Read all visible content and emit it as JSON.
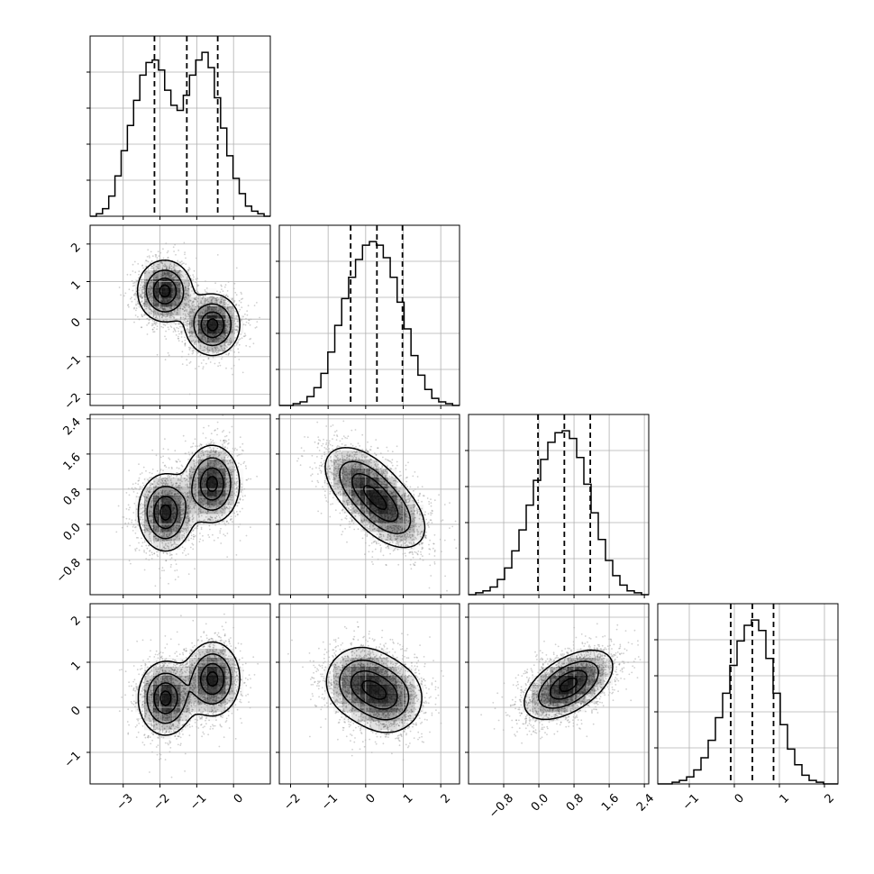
{
  "chart_data": {
    "type": "corner",
    "title": "",
    "parameter_labels": [],
    "grid": true,
    "colors": {
      "axes": "#000000",
      "grid": "#b0b0b0",
      "points": "#777777",
      "contour_fill": "#000000"
    },
    "ranges": [
      [
        -3.9,
        1.0
      ],
      [
        -2.3,
        2.5
      ],
      [
        -1.6,
        2.5
      ],
      [
        -1.7,
        2.3
      ]
    ],
    "tick_labels": [
      {
        "values": [
          -3,
          -2,
          -1,
          0
        ],
        "labels": [
          "−3",
          "−2",
          "−1",
          "0"
        ]
      },
      {
        "values": [
          -2,
          -1,
          0,
          1,
          2
        ],
        "labels": [
          "−2",
          "−1",
          "0",
          "1",
          "2"
        ]
      },
      {
        "values": [
          -0.8,
          0.0,
          0.8,
          1.6,
          2.4
        ],
        "labels": [
          "−0.8",
          "0.0",
          "0.8",
          "1.6",
          "2.4"
        ]
      },
      {
        "values": [
          -1,
          0,
          1,
          2
        ],
        "labels": [
          "−1",
          "0",
          "1",
          "2"
        ]
      }
    ],
    "quantiles": [
      [
        -2.15,
        -1.27,
        -0.43
      ],
      [
        -0.4,
        0.3,
        0.98
      ],
      [
        -0.02,
        0.58,
        1.17
      ],
      [
        -0.08,
        0.4,
        0.87
      ]
    ],
    "histograms": [
      {
        "bins": [
          -3.9,
          1.0
        ],
        "counts": [
          0,
          1,
          3,
          8,
          16,
          26,
          36,
          46,
          56,
          61,
          62,
          58,
          50,
          44,
          42,
          48,
          56,
          62,
          65,
          59,
          47,
          35,
          24,
          15,
          9,
          4,
          2,
          1,
          0
        ]
      },
      {
        "bins": [
          -2.3,
          2.5
        ],
        "counts": [
          0,
          0,
          1,
          2,
          5,
          10,
          18,
          30,
          45,
          60,
          72,
          82,
          90,
          92,
          90,
          83,
          72,
          58,
          43,
          28,
          17,
          9,
          4,
          2,
          1,
          0
        ]
      },
      {
        "bins": [
          -1.6,
          2.5
        ],
        "counts": [
          0,
          1,
          2,
          4,
          8,
          14,
          23,
          34,
          47,
          60,
          71,
          80,
          85,
          86,
          82,
          72,
          58,
          43,
          29,
          18,
          10,
          5,
          2,
          1,
          0
        ]
      },
      {
        "bins": [
          -1.7,
          2.3
        ],
        "counts": [
          0,
          0,
          1,
          2,
          4,
          8,
          15,
          25,
          38,
          52,
          68,
          82,
          91,
          94,
          88,
          72,
          52,
          34,
          20,
          11,
          5,
          2,
          1,
          0,
          0
        ]
      }
    ],
    "pair_modes": [
      {
        "x": 0,
        "y": 1,
        "modes": [
          [
            -1.87,
            0.75
          ],
          [
            -0.57,
            -0.15
          ]
        ],
        "sx": [
          0.38,
          0.38
        ],
        "sy": [
          0.42,
          0.42
        ],
        "rho": [
          0,
          0
        ]
      },
      {
        "x": 0,
        "y": 2,
        "modes": [
          [
            -1.85,
            0.27
          ],
          [
            -0.58,
            0.92
          ]
        ],
        "sx": [
          0.38,
          0.38
        ],
        "sy": [
          0.45,
          0.45
        ],
        "rho": [
          0,
          0
        ]
      },
      {
        "x": 1,
        "y": 2,
        "modes": [
          [
            -0.1,
            0.95
          ],
          [
            0.6,
            0.27
          ]
        ],
        "sx": [
          0.55,
          0.55
        ],
        "sy": [
          0.45,
          0.45
        ],
        "rho": [
          -0.45,
          -0.45
        ]
      },
      {
        "x": 0,
        "y": 3,
        "modes": [
          [
            -1.85,
            0.2
          ],
          [
            -0.57,
            0.63
          ]
        ],
        "sx": [
          0.38,
          0.38
        ],
        "sy": [
          0.42,
          0.42
        ],
        "rho": [
          0,
          0
        ]
      },
      {
        "x": 1,
        "y": 3,
        "modes": [
          [
            -0.15,
            0.57
          ],
          [
            0.6,
            0.2
          ]
        ],
        "sx": [
          0.5,
          0.5
        ],
        "sy": [
          0.42,
          0.42
        ],
        "rho": [
          0,
          0
        ]
      },
      {
        "x": 2,
        "y": 3,
        "modes": [
          [
            0.55,
            0.4
          ],
          [
            0.8,
            0.6
          ]
        ],
        "sx": [
          0.5,
          0.5
        ],
        "sy": [
          0.38,
          0.38
        ],
        "rho": [
          0.5,
          0.5
        ]
      }
    ]
  }
}
